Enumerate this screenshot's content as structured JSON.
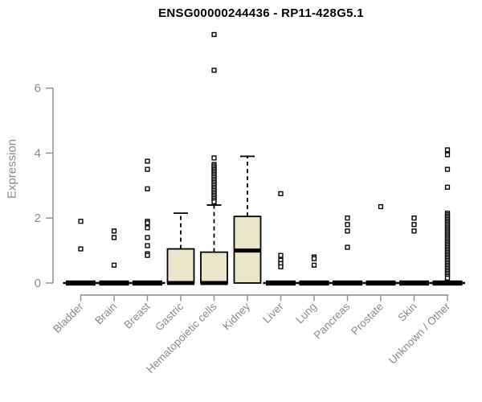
{
  "chart_data": {
    "type": "boxplot",
    "title": "ENSG00000244436 - RP11-428G5.1",
    "ylabel": "Expression",
    "xlabel": "",
    "yticks": [
      0,
      2,
      4,
      6
    ],
    "ylim": [
      0,
      7.9
    ],
    "grid": false,
    "legend": "none",
    "categories": [
      "Bladder",
      "Brain",
      "Breast",
      "Gastric",
      "Hematopoietic cells",
      "Kidney",
      "Liver",
      "Lung",
      "Pancreas",
      "Prostate",
      "Skin",
      "Unknown / Other"
    ],
    "series": [
      {
        "category": "Bladder",
        "q1": 0,
        "median": 0,
        "q3": 0,
        "whisker_low": 0,
        "whisker_high": 0,
        "outliers": [
          1.9,
          1.05
        ]
      },
      {
        "category": "Brain",
        "q1": 0,
        "median": 0,
        "q3": 0,
        "whisker_low": 0,
        "whisker_high": 0,
        "outliers": [
          1.6,
          1.4,
          0.55
        ]
      },
      {
        "category": "Breast",
        "q1": 0,
        "median": 0,
        "q3": 0,
        "whisker_low": 0,
        "whisker_high": 0,
        "outliers": [
          3.75,
          3.5,
          2.9,
          1.9,
          1.85,
          1.7,
          1.4,
          1.15,
          0.9,
          0.85
        ]
      },
      {
        "category": "Gastric",
        "q1": 0,
        "median": 0,
        "q3": 1.05,
        "whisker_low": 0,
        "whisker_high": 2.15,
        "outliers": []
      },
      {
        "category": "Hematopoietic cells",
        "q1": 0,
        "median": 0,
        "q3": 0.95,
        "whisker_low": 0,
        "whisker_high": 2.4,
        "outliers": [
          7.65,
          6.55,
          3.85,
          3.65,
          3.6,
          3.55,
          3.5,
          3.45,
          3.4,
          3.35,
          3.3,
          3.25,
          3.2,
          3.15,
          3.1,
          3.05,
          3.0,
          2.95,
          2.9,
          2.85,
          2.8,
          2.75,
          2.7,
          2.65,
          2.6,
          2.55,
          2.5
        ]
      },
      {
        "category": "Kidney",
        "q1": 0,
        "median": 1.0,
        "q3": 2.05,
        "whisker_low": 0,
        "whisker_high": 3.9,
        "outliers": []
      },
      {
        "category": "Liver",
        "q1": 0,
        "median": 0,
        "q3": 0,
        "whisker_low": 0,
        "whisker_high": 0,
        "outliers": [
          2.75,
          0.85,
          0.7,
          0.6,
          0.5
        ]
      },
      {
        "category": "Lung",
        "q1": 0,
        "median": 0,
        "q3": 0,
        "whisker_low": 0,
        "whisker_high": 0,
        "outliers": [
          0.8,
          0.75,
          0.55
        ]
      },
      {
        "category": "Pancreas",
        "q1": 0,
        "median": 0,
        "q3": 0,
        "whisker_low": 0,
        "whisker_high": 0,
        "outliers": [
          2.0,
          1.8,
          1.6,
          1.1
        ]
      },
      {
        "category": "Prostate",
        "q1": 0,
        "median": 0,
        "q3": 0,
        "whisker_low": 0,
        "whisker_high": 0,
        "outliers": [
          2.35
        ]
      },
      {
        "category": "Skin",
        "q1": 0,
        "median": 0,
        "q3": 0,
        "whisker_low": 0,
        "whisker_high": 0,
        "outliers": [
          2.0,
          1.8,
          1.6
        ]
      },
      {
        "category": "Unknown / Other",
        "q1": 0,
        "median": 0,
        "q3": 0,
        "whisker_low": 0,
        "whisker_high": 0,
        "outliers": [
          4.1,
          3.95,
          3.5,
          2.95,
          2.15,
          2.1,
          2.05,
          2.0,
          1.95,
          1.9,
          1.85,
          1.8,
          1.75,
          1.7,
          1.65,
          1.6,
          1.55,
          1.5,
          1.45,
          1.4,
          1.35,
          1.3,
          1.25,
          1.2,
          1.15,
          1.1,
          1.05,
          1.0,
          0.95,
          0.9,
          0.85,
          0.8,
          0.75,
          0.7,
          0.65,
          0.6,
          0.55,
          0.5,
          0.45,
          0.4,
          0.35,
          0.3,
          0.25,
          0.2,
          0.15
        ]
      }
    ],
    "colors": {
      "box_fill": "#EBE6CA",
      "box_border": "#000000",
      "median": "#000000",
      "whisker": "#000000",
      "outlier": "#000000",
      "axis": "#8A8A8A",
      "title": "#000000",
      "background": "#FFFFFF"
    }
  }
}
